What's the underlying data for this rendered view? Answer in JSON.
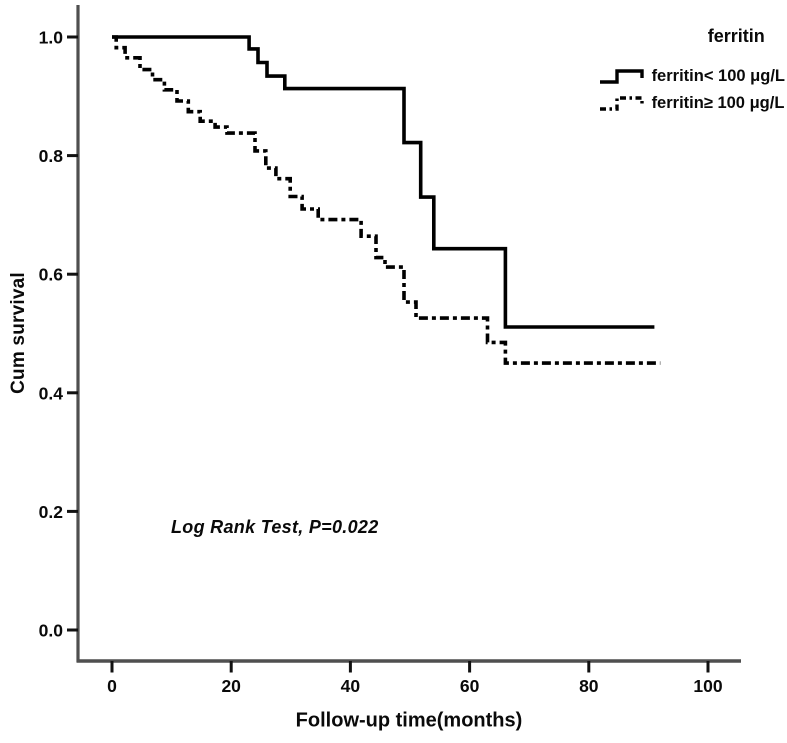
{
  "figure": {
    "ylabel": "Cum survival",
    "xlabel": "Follow-up time(months)",
    "annotation": "Log Rank Test, P=0.022",
    "legend": {
      "title": "ferritin",
      "entries": [
        {
          "label": "ferritin< 100 μg/L",
          "style": "solid"
        },
        {
          "label": "ferritin≥ 100 μg/L",
          "style": "dash-dot"
        }
      ]
    }
  },
  "chart_data": {
    "type": "line",
    "subtype": "kaplan-meier-step-survival",
    "title": "",
    "xlabel": "Follow-up time(months)",
    "ylabel": "Cum survival",
    "x_ticks": [
      0,
      20,
      40,
      60,
      80,
      100
    ],
    "y_ticks": [
      0.0,
      0.2,
      0.4,
      0.6,
      0.8,
      1.0
    ],
    "xlim": [
      -6,
      105
    ],
    "ylim": [
      -0.05,
      1.05
    ],
    "grid": false,
    "legend_position": "top-right",
    "curve_color": "#000000",
    "axis_color": "#4f4f4f",
    "annotation": {
      "text": "Log Rank Test, P=0.022",
      "x_month": 10,
      "y_value": 0.2
    },
    "series": [
      {
        "name": "ferritin< 100 μg/L",
        "style": "solid",
        "end_month": 91,
        "steps": [
          [
            0,
            1.0
          ],
          [
            23,
            0.98
          ],
          [
            24.5,
            0.957
          ],
          [
            26,
            0.934
          ],
          [
            29,
            0.913
          ],
          [
            49,
            0.822
          ],
          [
            51.8,
            0.73
          ],
          [
            54,
            0.643
          ],
          [
            66,
            0.511
          ]
        ]
      },
      {
        "name": "ferritin≥ 100 μg/L",
        "style": "dash-dot",
        "end_month": 92,
        "steps": [
          [
            0,
            1.0
          ],
          [
            0.7,
            0.982
          ],
          [
            2.2,
            0.965
          ],
          [
            4.7,
            0.945
          ],
          [
            6.8,
            0.928
          ],
          [
            8.8,
            0.911
          ],
          [
            10.9,
            0.892
          ],
          [
            12.8,
            0.874
          ],
          [
            14.8,
            0.858
          ],
          [
            17.3,
            0.848
          ],
          [
            19.3,
            0.838
          ],
          [
            24,
            0.808
          ],
          [
            25.8,
            0.779
          ],
          [
            27.5,
            0.761
          ],
          [
            29.9,
            0.731
          ],
          [
            31.9,
            0.71
          ],
          [
            34.6,
            0.692
          ],
          [
            41.8,
            0.664
          ],
          [
            44.3,
            0.628
          ],
          [
            45.8,
            0.612
          ],
          [
            49,
            0.553
          ],
          [
            51,
            0.526
          ],
          [
            63,
            0.485
          ],
          [
            66,
            0.45
          ]
        ]
      }
    ]
  }
}
